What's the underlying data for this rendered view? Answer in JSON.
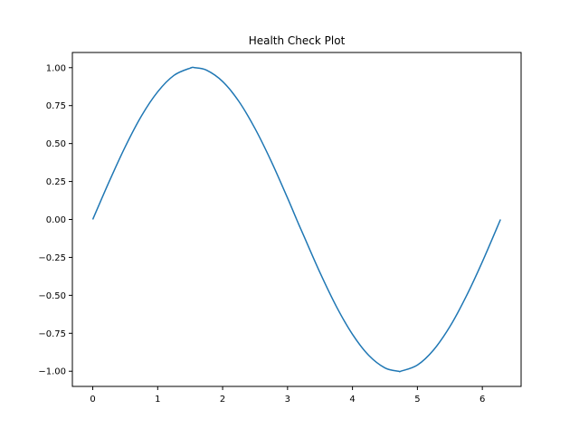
{
  "chart_data": {
    "type": "line",
    "title": "Health Check Plot",
    "xlabel": "",
    "ylabel": "",
    "xlim": [
      -0.314,
      6.597
    ],
    "ylim": [
      -1.1,
      1.1
    ],
    "x_ticks": [
      0,
      1,
      2,
      3,
      4,
      5,
      6
    ],
    "x_tick_labels": [
      "0",
      "1",
      "2",
      "3",
      "4",
      "5",
      "6"
    ],
    "y_ticks": [
      1.0,
      0.75,
      0.5,
      0.25,
      0.0,
      -0.25,
      -0.5,
      -0.75,
      -1.0
    ],
    "y_tick_labels": [
      "1.00",
      "0.75",
      "0.50",
      "0.25",
      "0.00",
      "−0.25",
      "−0.50",
      "−0.75",
      "−1.00"
    ],
    "grid": false,
    "series": [
      {
        "color": "#1f77b4",
        "x": [
          0,
          0.25,
          0.5,
          0.75,
          1.0,
          1.25,
          1.5,
          1.57,
          1.75,
          2.0,
          2.25,
          2.5,
          2.75,
          3.0,
          3.14,
          3.25,
          3.5,
          3.75,
          4.0,
          4.25,
          4.5,
          4.71,
          4.75,
          5.0,
          5.25,
          5.5,
          5.75,
          6.0,
          6.28
        ],
        "y": [
          0.0,
          0.247,
          0.479,
          0.682,
          0.841,
          0.949,
          0.997,
          1.0,
          0.984,
          0.909,
          0.778,
          0.598,
          0.382,
          0.141,
          0.0,
          -0.108,
          -0.351,
          -0.572,
          -0.757,
          -0.895,
          -0.978,
          -1.0,
          -0.999,
          -0.959,
          -0.859,
          -0.706,
          -0.508,
          -0.279,
          0.0
        ]
      }
    ]
  }
}
